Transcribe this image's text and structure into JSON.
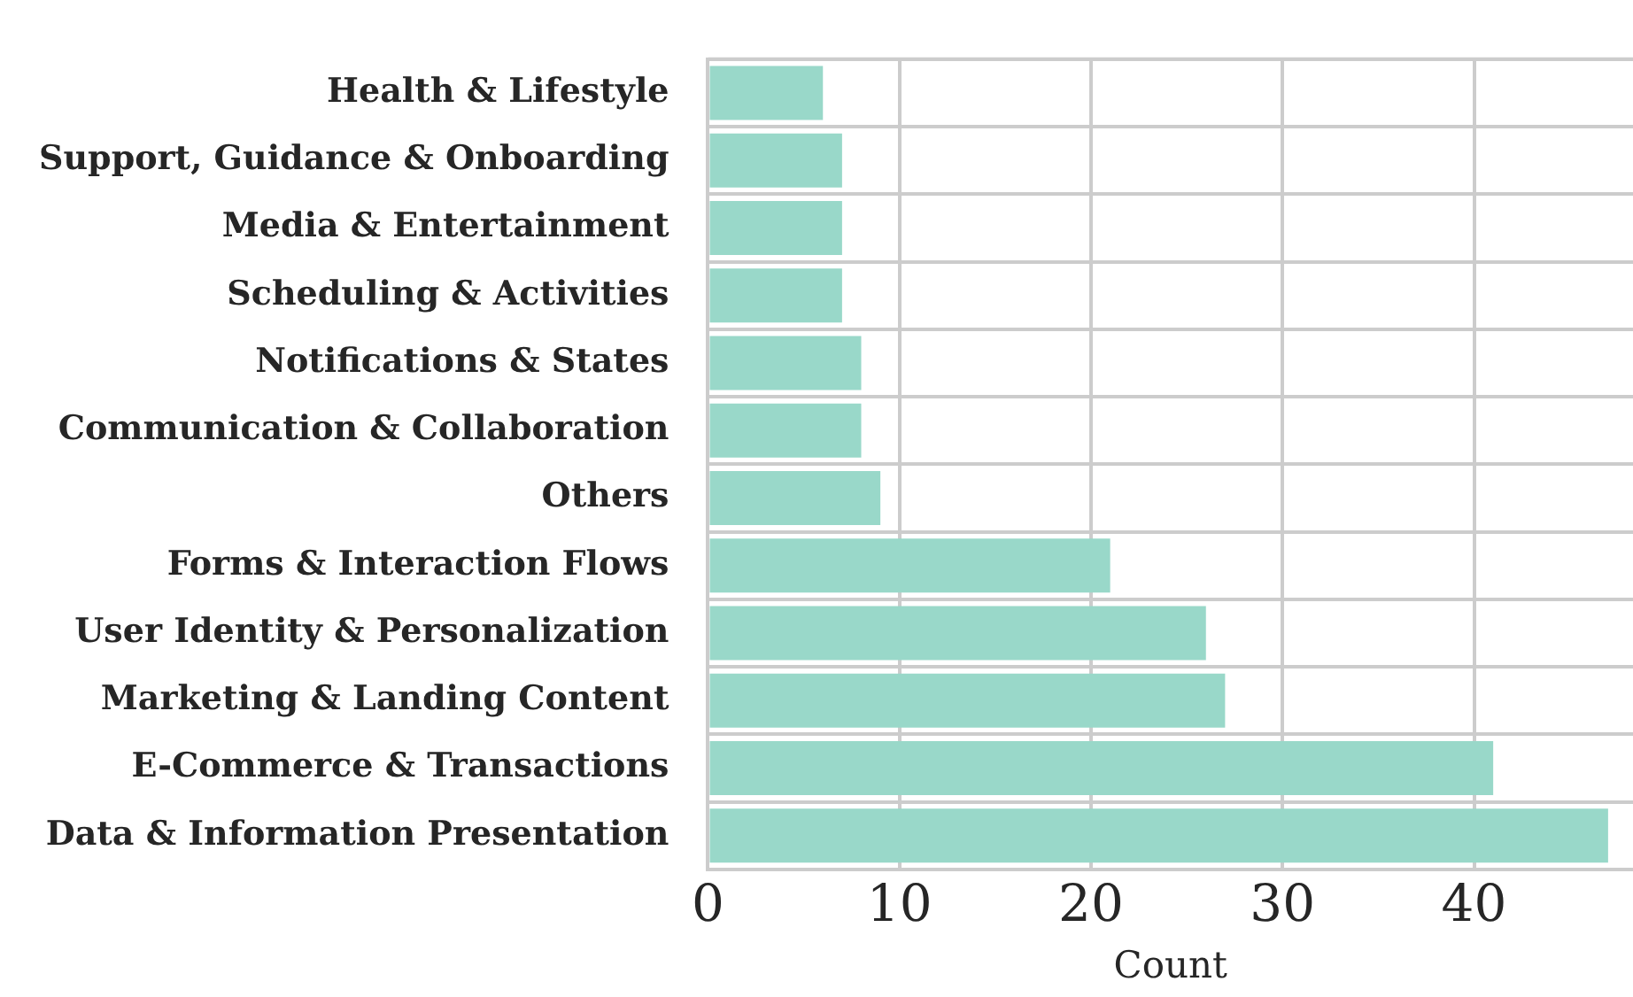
{
  "chart_data": {
    "type": "bar",
    "orientation": "horizontal",
    "xlabel": "Count",
    "categories": [
      "Health & Lifestyle",
      "Support, Guidance & Onboarding",
      "Media & Entertainment",
      "Scheduling & Activities",
      "Notifications & States",
      "Communication & Collaboration",
      "Others",
      "Forms & Interaction Flows",
      "User Identity & Personalization",
      "Marketing & Landing Content",
      "E-Commerce & Transactions",
      "Data & Information Presentation"
    ],
    "values": [
      6,
      7,
      7,
      7,
      8,
      8,
      9,
      21,
      26,
      27,
      41,
      47
    ],
    "color": "#99d8c9",
    "xlim": [
      0,
      48.3
    ],
    "xticks": [
      0,
      10,
      20,
      30,
      40
    ],
    "grid": true
  }
}
